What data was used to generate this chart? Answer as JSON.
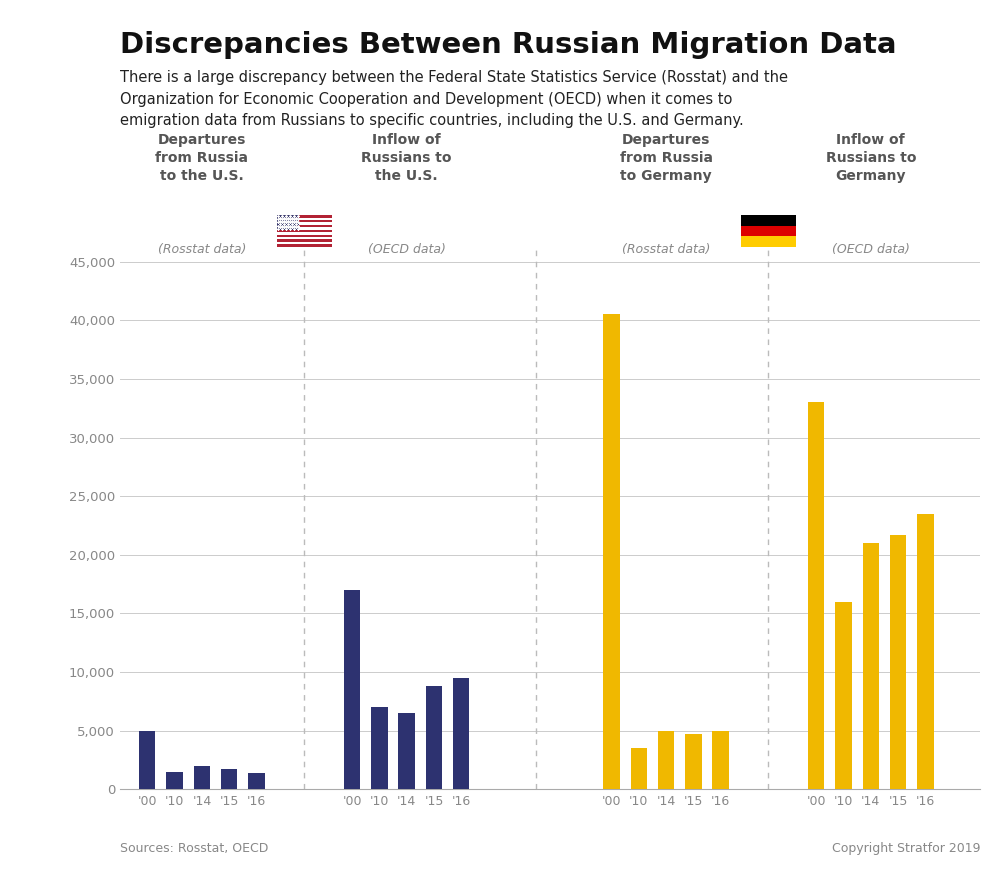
{
  "title": "Discrepancies Between Russian Migration Data",
  "subtitle": "There is a large discrepancy between the Federal State Statistics Service (Rosstat) and the\nOrganization for Economic Cooperation and Development (OECD) when it comes to\nemigration data from Russians to specific countries, including the U.S. and Germany.",
  "footer_left": "Sources: Rosstat, OECD",
  "footer_right": "Copyright Stratfor 2019",
  "bar_color_navy": "#2d3270",
  "bar_color_gold": "#f0b800",
  "groups": [
    {
      "label_bold": "Departures\nfrom Russia\nto the U.S.",
      "label_italic": "(Rosstat data)",
      "flag": "us",
      "color": "#2d3270",
      "years": [
        "'00",
        "'10",
        "'14",
        "'15",
        "'16"
      ],
      "values": [
        5000,
        1500,
        2000,
        1700,
        1400
      ]
    },
    {
      "label_bold": "Inflow of\nRussians to\nthe U.S.",
      "label_italic": "(OECD data)",
      "flag": null,
      "color": "#2d3270",
      "years": [
        "'00",
        "'10",
        "'14",
        "'15",
        "'16"
      ],
      "values": [
        17000,
        7000,
        6500,
        8800,
        9500
      ]
    },
    {
      "label_bold": "Departures\nfrom Russia\nto Germany",
      "label_italic": "(Rosstat data)",
      "flag": "de",
      "color": "#f0b800",
      "years": [
        "'00",
        "'10",
        "'14",
        "'15",
        "'16"
      ],
      "values": [
        40500,
        3500,
        5000,
        4700,
        5000
      ]
    },
    {
      "label_bold": "Inflow of\nRussians to\nGermany",
      "label_italic": "(OECD data)",
      "flag": null,
      "color": "#f0b800",
      "years": [
        "'00",
        "'10",
        "'14",
        "'15",
        "'16"
      ],
      "values": [
        33000,
        16000,
        21000,
        21700,
        23500
      ]
    }
  ],
  "ylim": [
    0,
    46000
  ],
  "yticks": [
    0,
    5000,
    10000,
    15000,
    20000,
    25000,
    30000,
    35000,
    40000,
    45000
  ],
  "grid_color": "#cccccc",
  "axis_color": "#aaaaaa",
  "tick_label_color": "#888888",
  "divider_color": "#bbbbbb",
  "header_bold_color": "#555555",
  "header_italic_color": "#888888"
}
